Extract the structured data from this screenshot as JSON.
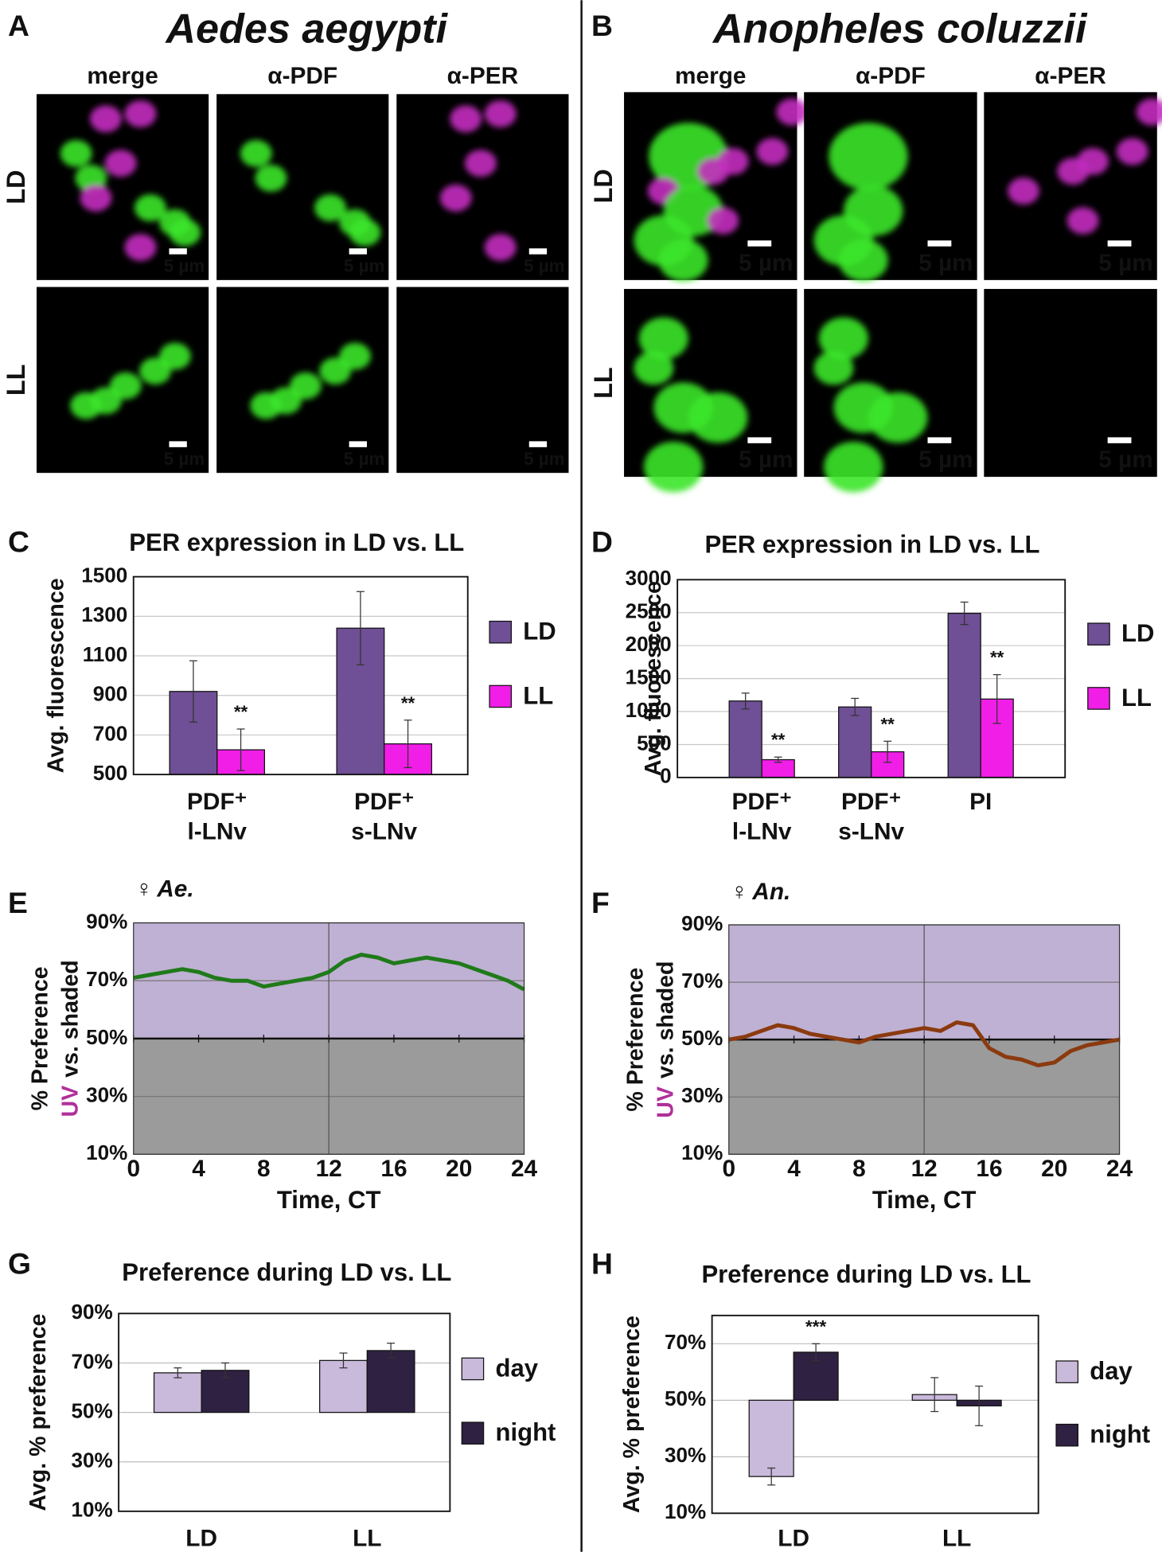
{
  "microscopy": [
    {
      "letter": "A",
      "title": "Aedes aegypti",
      "columns": [
        "merge",
        "α-PDF",
        "α-PER"
      ],
      "column_colors": [
        "#111111",
        "#3cc82c",
        "#c02ca8"
      ],
      "rows": [
        "LD",
        "LL"
      ],
      "scale_bar": "5 µm"
    },
    {
      "letter": "B",
      "title": "Anopheles coluzzii",
      "columns": [
        "merge",
        "α-PDF",
        "α-PER"
      ],
      "column_colors": [
        "#111111",
        "#3cc82c",
        "#c02ca8"
      ],
      "rows": [
        "LD",
        "LL"
      ],
      "scale_bar": "5 µm"
    }
  ],
  "chart_data": [
    {
      "type": "bar",
      "letter": "C",
      "title": "PER expression in LD vs. LL",
      "ylabel": "Avg. fluorescence",
      "categories": [
        [
          "PDF⁺",
          "l-LNv"
        ],
        [
          "PDF⁺",
          "s-LNv"
        ]
      ],
      "series": [
        {
          "name": "LD",
          "color": "#6f4f95",
          "values": [
            920,
            1240
          ],
          "errors": [
            155,
            185
          ]
        },
        {
          "name": "LL",
          "color": "#f01ee6",
          "values": [
            625,
            655
          ],
          "errors": [
            105,
            120
          ],
          "annotations": [
            "**",
            "**"
          ]
        }
      ],
      "ylim": [
        500,
        1500
      ],
      "yticks": [
        500,
        700,
        900,
        1100,
        1300,
        1500
      ],
      "grid": true,
      "grid_color": "#c8c8c8"
    },
    {
      "type": "bar",
      "letter": "D",
      "title": "PER expression in LD vs. LL",
      "ylabel": "Avg. fluorescence",
      "categories": [
        [
          "PDF⁺",
          "l-LNv"
        ],
        [
          "PDF⁺",
          "s-LNv"
        ],
        [
          "PI"
        ]
      ],
      "series": [
        {
          "name": "LD",
          "color": "#6f4f95",
          "values": [
            1160,
            1070,
            2490
          ],
          "errors": [
            120,
            130,
            170
          ]
        },
        {
          "name": "LL",
          "color": "#f01ee6",
          "values": [
            270,
            390,
            1190
          ],
          "errors": [
            40,
            160,
            370
          ],
          "annotations": [
            "**",
            "**",
            "**"
          ]
        }
      ],
      "ylim": [
        0,
        3000
      ],
      "yticks": [
        0,
        500,
        1000,
        1500,
        2000,
        2500,
        3000
      ],
      "grid": true,
      "grid_color": "#c8c8c8"
    },
    {
      "type": "line",
      "letter": "E",
      "annotation": "♀ Ae.",
      "xlabel": "Time, CT",
      "ylabel": {
        "line1": "% Preference",
        "highlight": "UV",
        "line2": "vs. shaded",
        "highlight_color": "#b0309a"
      },
      "x": [
        0,
        1,
        2,
        3,
        4,
        5,
        6,
        7,
        8,
        9,
        10,
        11,
        12,
        13,
        14,
        15,
        16,
        17,
        18,
        19,
        20,
        21,
        22,
        23,
        24
      ],
      "values": [
        71,
        72,
        73,
        74,
        73,
        71,
        70,
        70,
        68,
        69,
        70,
        71,
        73,
        77,
        79,
        78,
        76,
        77,
        78,
        77,
        76,
        74,
        72,
        70,
        67
      ],
      "color": "#1f7a1a",
      "baseline": 50,
      "vline": 12,
      "above_color": "#bfb1d3",
      "below_color": "#9b9b9b",
      "xlim": [
        0,
        24
      ],
      "xticks": [
        0,
        4,
        8,
        12,
        16,
        20,
        24
      ],
      "ylim": [
        10,
        90
      ],
      "yticks": [
        {
          "value": 10,
          "label": "10%"
        },
        {
          "value": 30,
          "label": "30%"
        },
        {
          "value": 50,
          "label": "50%"
        },
        {
          "value": 70,
          "label": "70%"
        },
        {
          "value": 90,
          "label": "90%"
        }
      ],
      "grid": true
    },
    {
      "type": "line",
      "letter": "F",
      "annotation": "♀ An.",
      "xlabel": "Time, CT",
      "ylabel": {
        "line1": "% Preference",
        "highlight": "UV",
        "line2": "vs. shaded",
        "highlight_color": "#b0309a"
      },
      "x": [
        0,
        1,
        2,
        3,
        4,
        5,
        6,
        7,
        8,
        9,
        10,
        11,
        12,
        13,
        14,
        15,
        16,
        17,
        18,
        19,
        20,
        21,
        22,
        23,
        24
      ],
      "values": [
        50,
        51,
        53,
        55,
        54,
        52,
        51,
        50,
        49,
        51,
        52,
        53,
        54,
        53,
        56,
        55,
        47,
        44,
        43,
        41,
        42,
        46,
        48,
        49,
        50
      ],
      "color": "#8b3a0f",
      "baseline": 50,
      "vline": 12,
      "above_color": "#bfb1d3",
      "below_color": "#9b9b9b",
      "xlim": [
        0,
        24
      ],
      "xticks": [
        0,
        4,
        8,
        12,
        16,
        20,
        24
      ],
      "ylim": [
        10,
        90
      ],
      "yticks": [
        {
          "value": 10,
          "label": "10%"
        },
        {
          "value": 30,
          "label": "30%"
        },
        {
          "value": 50,
          "label": "50%"
        },
        {
          "value": 70,
          "label": "70%"
        },
        {
          "value": 90,
          "label": "90%"
        }
      ],
      "grid": true
    },
    {
      "type": "bar",
      "letter": "G",
      "title": "Preference during LD vs. LL",
      "ylabel": "Avg. % preference",
      "categories": [
        "LD",
        "LL"
      ],
      "base": 50,
      "series": [
        {
          "name": "day",
          "color": "#c9b9da",
          "values": [
            66,
            71
          ],
          "errors": [
            2,
            3
          ]
        },
        {
          "name": "night",
          "color": "#2f2142",
          "values": [
            67,
            75
          ],
          "errors": [
            3,
            3
          ]
        }
      ],
      "ylim": [
        10,
        90
      ],
      "yticks": [
        {
          "value": 10,
          "label": "10%"
        },
        {
          "value": 30,
          "label": "30%"
        },
        {
          "value": 50,
          "label": "50%"
        },
        {
          "value": 70,
          "label": "70%"
        },
        {
          "value": 90,
          "label": "90%"
        }
      ],
      "grid": true,
      "grid_color": "#bdbdbd"
    },
    {
      "type": "bar",
      "letter": "H",
      "title": "Preference during LD vs. LL",
      "ylabel": "Avg. % preference",
      "categories": [
        "LD",
        "LL"
      ],
      "base": 50,
      "series": [
        {
          "name": "day",
          "color": "#c9b9da",
          "values": [
            23,
            52
          ],
          "errors": [
            3,
            6
          ]
        },
        {
          "name": "night",
          "color": "#2f2142",
          "values": [
            67,
            48
          ],
          "errors": [
            3,
            7
          ],
          "annotations": [
            "***",
            null
          ]
        }
      ],
      "ylim": [
        10,
        80
      ],
      "yticks": [
        {
          "value": 10,
          "label": "10%"
        },
        {
          "value": 30,
          "label": "30%"
        },
        {
          "value": 50,
          "label": "50%"
        },
        {
          "value": 70,
          "label": "70%"
        }
      ],
      "grid": true,
      "grid_color": "#bdbdbd"
    }
  ]
}
